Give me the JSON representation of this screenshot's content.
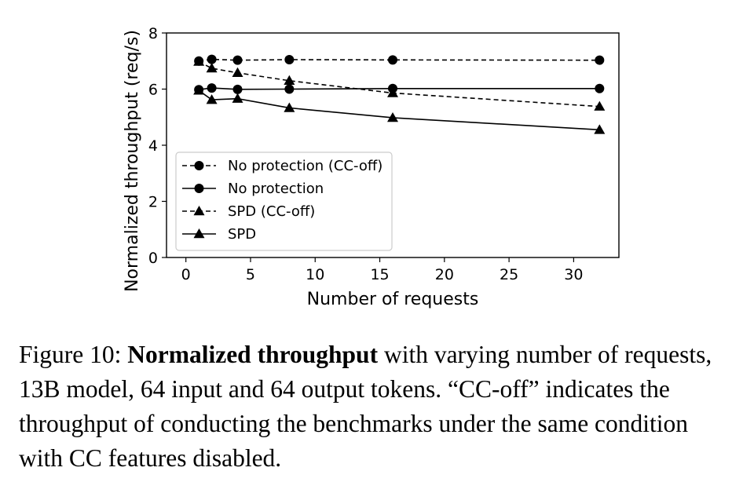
{
  "chart_data": {
    "type": "line",
    "xlabel": "Number of requests",
    "ylabel": "Normalized throughput (req/s)",
    "xlim": [
      -1.5,
      33.5
    ],
    "ylim": [
      0,
      8
    ],
    "xticks": [
      0,
      5,
      10,
      15,
      20,
      25,
      30
    ],
    "yticks": [
      0,
      2,
      4,
      6,
      8
    ],
    "grid": false,
    "legend_position": "lower-left",
    "series": [
      {
        "name": "No protection (CC-off)",
        "line": "dashed",
        "marker": "circle",
        "x": [
          1,
          2,
          4,
          8,
          16,
          32
        ],
        "y": [
          7.0,
          7.06,
          7.03,
          7.05,
          7.04,
          7.03
        ]
      },
      {
        "name": "No protection",
        "line": "solid",
        "marker": "circle",
        "x": [
          1,
          2,
          4,
          8,
          16,
          32
        ],
        "y": [
          5.98,
          6.04,
          5.99,
          6.0,
          6.02,
          6.02
        ]
      },
      {
        "name": "SPD (CC-off)",
        "line": "dashed",
        "marker": "triangle",
        "x": [
          1,
          2,
          4,
          8,
          16,
          32
        ],
        "y": [
          6.98,
          6.74,
          6.58,
          6.3,
          5.86,
          5.38
        ]
      },
      {
        "name": "SPD",
        "line": "solid",
        "marker": "triangle",
        "x": [
          1,
          2,
          4,
          8,
          16,
          32
        ],
        "y": [
          5.95,
          5.62,
          5.66,
          5.33,
          4.98,
          4.55
        ]
      }
    ]
  },
  "caption": {
    "prefix": "Figure 10: ",
    "bold": "Normalized throughput",
    "text": " with varying number of requests, 13B model, 64 input and 64 output tokens. “CC-off” indicates the throughput of conducting the benchmarks under the same condition with CC features disabled."
  }
}
